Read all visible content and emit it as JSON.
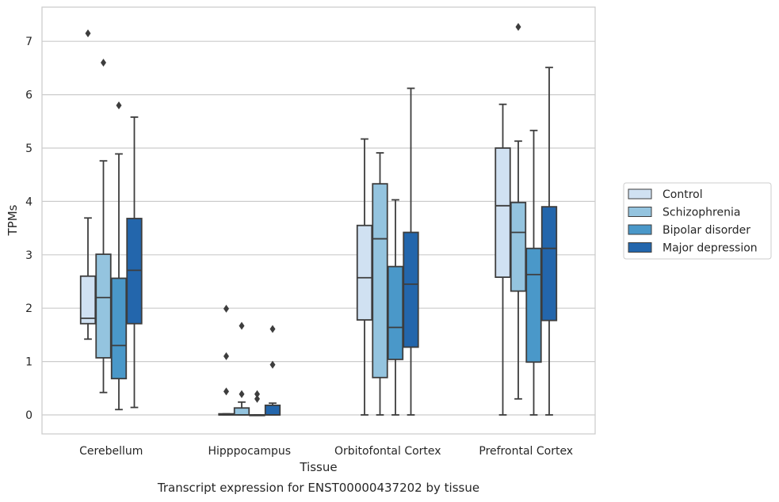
{
  "chart_data": {
    "type": "box",
    "xlabel": "Tissue",
    "ylabel": "TPMs",
    "caption": "Transcript expression for ENST00000437202 by tissue",
    "ylim": [
      -0.35,
      7.65
    ],
    "yticks": [
      0,
      1,
      2,
      3,
      4,
      5,
      6,
      7
    ],
    "grid": true,
    "legend_position": "right",
    "categories": [
      "Cerebellum",
      "Hipppocampus",
      "Orbitofontal Cortex",
      "Prefrontal Cortex"
    ],
    "series": [
      {
        "name": "Control",
        "color": "#d0e1f2",
        "boxes": [
          {
            "whisker_low": 1.42,
            "q1": 1.71,
            "median": 1.81,
            "q3": 2.6,
            "whisker_high": 3.69,
            "outliers": [
              7.15
            ]
          },
          {
            "whisker_low": 0.0,
            "q1": 0.0,
            "median": 0.0,
            "q3": 0.02,
            "whisker_high": 0.02,
            "outliers": [
              0.44,
              1.1,
              1.99
            ]
          },
          {
            "whisker_low": 0.0,
            "q1": 1.78,
            "median": 2.57,
            "q3": 3.55,
            "whisker_high": 5.17,
            "outliers": []
          },
          {
            "whisker_low": 0.0,
            "q1": 2.58,
            "median": 3.92,
            "q3": 5.0,
            "whisker_high": 5.82,
            "outliers": []
          }
        ]
      },
      {
        "name": "Schizophrenia",
        "color": "#94c4df",
        "boxes": [
          {
            "whisker_low": 0.42,
            "q1": 1.07,
            "median": 2.2,
            "q3": 3.01,
            "whisker_high": 4.76,
            "outliers": [
              6.6
            ]
          },
          {
            "whisker_low": 0.0,
            "q1": 0.0,
            "median": 0.0,
            "q3": 0.13,
            "whisker_high": 0.24,
            "outliers": [
              0.39,
              1.67
            ]
          },
          {
            "whisker_low": 0.0,
            "q1": 0.7,
            "median": 3.3,
            "q3": 4.33,
            "whisker_high": 4.91,
            "outliers": []
          },
          {
            "whisker_low": 0.3,
            "q1": 2.32,
            "median": 3.42,
            "q3": 3.98,
            "whisker_high": 5.13,
            "outliers": [
              7.27
            ]
          }
        ]
      },
      {
        "name": "Bipolar disorder",
        "color": "#4a98c9",
        "boxes": [
          {
            "whisker_low": 0.1,
            "q1": 0.68,
            "median": 1.3,
            "q3": 2.56,
            "whisker_high": 4.89,
            "outliers": [
              5.8
            ]
          },
          {
            "whisker_low": 0.0,
            "q1": 0.0,
            "median": 0.0,
            "q3": 0.0,
            "whisker_high": 0.0,
            "outliers": [
              0.3,
              0.39
            ]
          },
          {
            "whisker_low": 0.0,
            "q1": 1.04,
            "median": 1.64,
            "q3": 2.78,
            "whisker_high": 4.03,
            "outliers": []
          },
          {
            "whisker_low": 0.0,
            "q1": 0.99,
            "median": 2.63,
            "q3": 3.12,
            "whisker_high": 5.33,
            "outliers": []
          }
        ]
      },
      {
        "name": "Major depression",
        "color": "#2366ac",
        "boxes": [
          {
            "whisker_low": 0.14,
            "q1": 1.71,
            "median": 2.71,
            "q3": 3.68,
            "whisker_high": 5.58,
            "outliers": []
          },
          {
            "whisker_low": 0.0,
            "q1": 0.0,
            "median": 0.0,
            "q3": 0.18,
            "whisker_high": 0.22,
            "outliers": [
              0.94,
              1.61
            ]
          },
          {
            "whisker_low": 0.0,
            "q1": 1.27,
            "median": 2.45,
            "q3": 3.42,
            "whisker_high": 6.12,
            "outliers": []
          },
          {
            "whisker_low": 0.0,
            "q1": 1.77,
            "median": 3.12,
            "q3": 3.9,
            "whisker_high": 6.51,
            "outliers": []
          }
        ]
      }
    ]
  }
}
